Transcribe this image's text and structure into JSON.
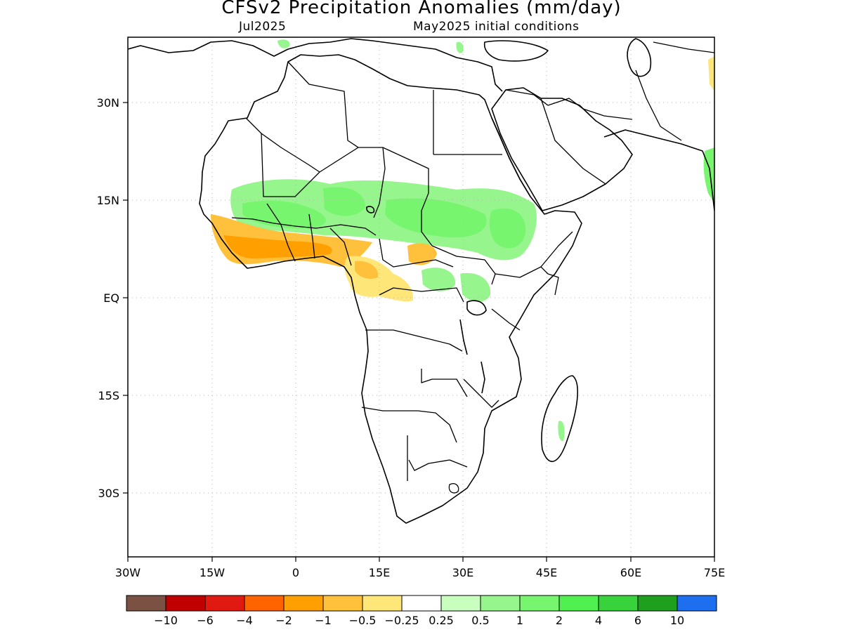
{
  "title": "CFSv2 Precipitation Anomalies (mm/day)",
  "subtitle_left": "Jul2025",
  "subtitle_right": "May2025 initial conditions",
  "map": {
    "lon_range": [
      -30,
      75
    ],
    "lat_range": [
      -46,
      46
    ],
    "lon_ticks": [
      {
        "value": -30,
        "label": "30W"
      },
      {
        "value": -15,
        "label": "15W"
      },
      {
        "value": 0,
        "label": "0"
      },
      {
        "value": 15,
        "label": "15E"
      },
      {
        "value": 30,
        "label": "30E"
      },
      {
        "value": 45,
        "label": "45E"
      },
      {
        "value": 60,
        "label": "60E"
      },
      {
        "value": 75,
        "label": "75E"
      }
    ],
    "lat_ticks": [
      {
        "value": 30,
        "label": "30N"
      },
      {
        "value": 15,
        "label": "15N"
      },
      {
        "value": 0,
        "label": "EQ"
      },
      {
        "value": -15,
        "label": "15S"
      },
      {
        "value": -30,
        "label": "30S"
      }
    ],
    "gridlines": "dotted"
  },
  "colorbar": {
    "colors": [
      "#7a5142",
      "#c00000",
      "#e01a10",
      "#ff6400",
      "#ffa000",
      "#ffc03c",
      "#ffe678",
      "#ffffff",
      "#c8ffbe",
      "#96f58c",
      "#78f56e",
      "#50f050",
      "#37d23c",
      "#1ea01e",
      "#1e6ef0"
    ],
    "labels": [
      "−10",
      "−6",
      "−4",
      "−2",
      "−1",
      "−0.5",
      "−0.25",
      "0.25",
      "0.5",
      "1",
      "2",
      "4",
      "6",
      "10"
    ]
  }
}
